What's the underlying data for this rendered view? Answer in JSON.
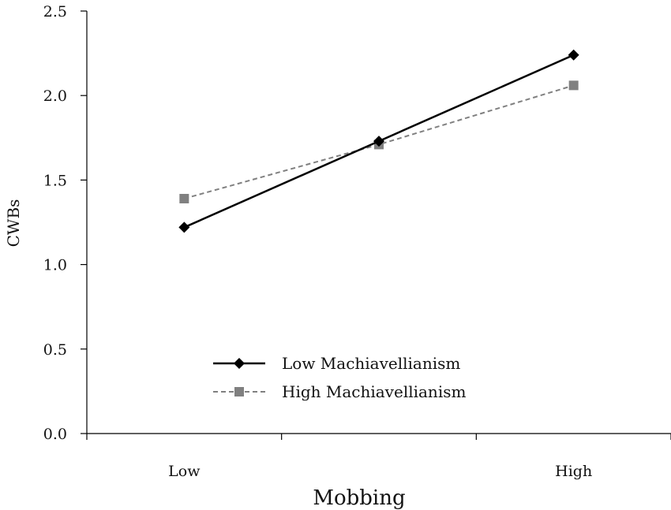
{
  "chart_data": {
    "type": "line",
    "title": "",
    "xlabel": "Mobbing",
    "ylabel": "CWBs",
    "categories": [
      "Low",
      "",
      "High"
    ],
    "ylim": [
      0,
      2.5
    ],
    "yticks": [
      "0.0",
      "0.5",
      "1.0",
      "1.5",
      "2.0",
      "2.5"
    ],
    "grid": false,
    "legend_position": "bottom-center",
    "series": [
      {
        "name": "Low Machiavellianism",
        "values": [
          1.22,
          1.73,
          2.24
        ],
        "color": "#000000",
        "style": "solid",
        "marker": "diamond"
      },
      {
        "name": "High Machiavellianism",
        "values": [
          1.39,
          1.71,
          2.06
        ],
        "color": "#808080",
        "style": "dashed",
        "marker": "square"
      }
    ]
  }
}
